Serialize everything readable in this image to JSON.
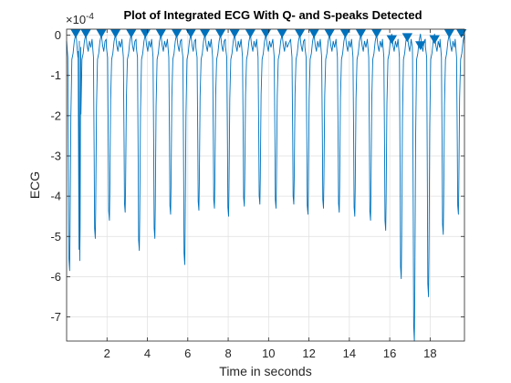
{
  "chart_data": {
    "type": "line",
    "title": "Plot of Integrated ECG With Q- and S-peaks Detected",
    "xlabel": "Time in seconds",
    "ylabel": "ECG",
    "y_exponent_label": "×10",
    "y_exponent_power": "-4",
    "xlim": [
      0,
      19.7
    ],
    "ylim": [
      -7.6,
      0.15
    ],
    "x_ticks": [
      2,
      4,
      6,
      8,
      10,
      12,
      14,
      16,
      18
    ],
    "y_ticks": [
      0,
      -1,
      -2,
      -3,
      -4,
      -5,
      -6,
      -7
    ],
    "grid": true,
    "series": [
      {
        "color": "#0072BD",
        "beat_times": [
          0.15,
          0.65,
          1.42,
          2.12,
          2.9,
          3.6,
          4.37,
          5.15,
          5.85,
          6.55,
          7.32,
          8.02,
          8.8,
          9.57,
          10.37,
          11.25,
          11.95,
          12.72,
          13.5,
          14.27,
          15.05,
          15.8,
          16.57,
          17.22,
          17.92,
          18.65,
          19.4
        ],
        "beat_depths": [
          -5.85,
          -5.6,
          -5.05,
          -4.6,
          -4.4,
          -5.35,
          -5.05,
          -4.45,
          -5.7,
          -4.35,
          -4.3,
          -4.5,
          -4.25,
          -4.2,
          -4.3,
          -4.2,
          -4.45,
          -4.3,
          -4.4,
          -4.5,
          -4.6,
          -4.85,
          -6.05,
          -7.6,
          -6.5,
          -4.95,
          -4.45
        ],
        "marker_times": [
          0.45,
          0.95,
          1.72,
          2.42,
          3.2,
          3.9,
          4.67,
          5.45,
          6.15,
          6.85,
          7.62,
          8.32,
          9.1,
          9.87,
          10.67,
          11.55,
          12.25,
          13.02,
          13.8,
          14.57,
          15.35,
          16.1,
          16.87,
          17.52,
          18.22,
          18.95,
          19.55
        ],
        "marker_values": [
          0.05,
          0.05,
          0.05,
          0.05,
          0.05,
          0.05,
          0.05,
          0.05,
          0.05,
          0.05,
          0.05,
          0.05,
          0.05,
          0.05,
          0.05,
          0.05,
          0.05,
          0.05,
          0.05,
          0.05,
          0.05,
          -0.1,
          -0.05,
          -0.25,
          -0.1,
          0.05,
          0.05
        ]
      }
    ]
  }
}
